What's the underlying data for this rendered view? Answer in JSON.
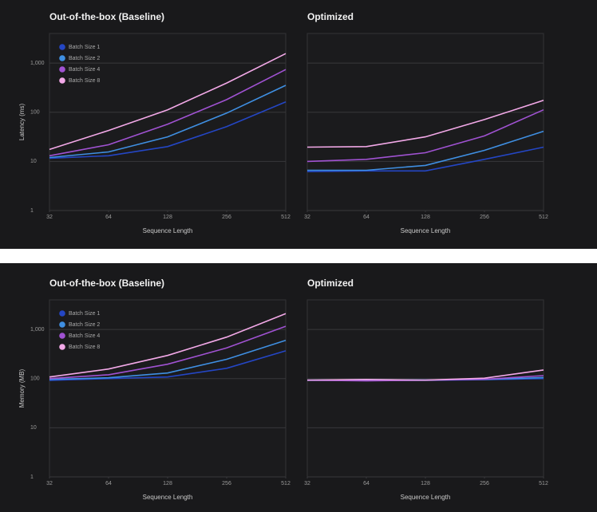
{
  "chart_data": [
    {
      "type": "line",
      "title": "Out-of-the-box (Baseline)",
      "x_label": "Sequence Length",
      "y_label": "Latency (ms)",
      "x": [
        32,
        64,
        128,
        256,
        512
      ],
      "xlim": [
        32,
        512
      ],
      "xticks": [
        32,
        64,
        128,
        256,
        512
      ],
      "xlog": true,
      "ylim": [
        1,
        4000
      ],
      "yticks": [
        1,
        10,
        100,
        {
          "value": 1000,
          "label": "1,000"
        }
      ],
      "ylog": true,
      "grid": true,
      "ytick_labels": true,
      "legend": "upper left",
      "series": [
        {
          "name": "Batch Size 1",
          "color": "#2446c4",
          "values": [
            11.6,
            13,
            20,
            51,
            162
          ]
        },
        {
          "name": "Batch Size 2",
          "color": "#3f8fe2",
          "values": [
            12,
            15.6,
            31.6,
            96,
            353
          ]
        },
        {
          "name": "Batch Size 4",
          "color": "#a052d2",
          "values": [
            13,
            21.8,
            57,
            181,
            740
          ]
        },
        {
          "name": "Batch Size 8",
          "color": "#f3a9e8",
          "values": [
            17.5,
            42.5,
            112,
            393,
            1560
          ]
        }
      ]
    },
    {
      "type": "line",
      "title": "Optimized",
      "x_label": "Sequence Length",
      "x": [
        32,
        64,
        128,
        256,
        512
      ],
      "xlim": [
        32,
        512
      ],
      "xticks": [
        32,
        64,
        128,
        256,
        512
      ],
      "xlog": true,
      "ylim": [
        1,
        4000
      ],
      "yticks": [
        1,
        10,
        100,
        1000
      ],
      "ylog": true,
      "grid": true,
      "ytick_labels": false,
      "legend": false,
      "series": [
        {
          "name": "Batch Size 1",
          "color": "#2446c4",
          "values": [
            6.2,
            6.4,
            6.4,
            11,
            19.5
          ]
        },
        {
          "name": "Batch Size 2",
          "color": "#3f8fe2",
          "values": [
            6.6,
            6.6,
            8.3,
            16.8,
            41
          ]
        },
        {
          "name": "Batch Size 4",
          "color": "#a052d2",
          "values": [
            10,
            11,
            15,
            33,
            112
          ]
        },
        {
          "name": "Batch Size 8",
          "color": "#f3a9e8",
          "values": [
            19.5,
            20,
            31.6,
            71,
            175
          ]
        }
      ]
    },
    {
      "type": "line",
      "title": "Out-of-the-box (Baseline)",
      "x_label": "Sequence Length",
      "y_label": "Memory (MB)",
      "x": [
        32,
        64,
        128,
        256,
        512
      ],
      "xlim": [
        32,
        512
      ],
      "xticks": [
        32,
        64,
        128,
        256,
        512
      ],
      "xlog": true,
      "ylim": [
        1,
        4000
      ],
      "yticks": [
        1,
        10,
        100,
        {
          "value": 1000,
          "label": "1,000"
        }
      ],
      "ylog": true,
      "grid": true,
      "ytick_labels": true,
      "legend": "upper left",
      "series": [
        {
          "name": "Batch Size 1",
          "color": "#2446c4",
          "values": [
            92,
            100,
            108,
            162,
            367
          ]
        },
        {
          "name": "Batch Size 2",
          "color": "#3f8fe2",
          "values": [
            96,
            104,
            130,
            247,
            600
          ]
        },
        {
          "name": "Batch Size 4",
          "color": "#a052d2",
          "values": [
            100,
            120,
            196,
            420,
            1160
          ]
        },
        {
          "name": "Batch Size 8",
          "color": "#f3a9e8",
          "values": [
            108,
            157,
            296,
            700,
            2100
          ]
        }
      ]
    },
    {
      "type": "line",
      "title": "Optimized",
      "x_label": "Sequence Length",
      "x": [
        32,
        64,
        128,
        256,
        512
      ],
      "xlim": [
        32,
        512
      ],
      "xticks": [
        32,
        64,
        128,
        256,
        512
      ],
      "xlog": true,
      "ylim": [
        1,
        4000
      ],
      "yticks": [
        1,
        10,
        100,
        1000
      ],
      "ylog": true,
      "grid": true,
      "ytick_labels": false,
      "legend": false,
      "series": [
        {
          "name": "Batch Size 1",
          "color": "#2446c4",
          "values": [
            92,
            93,
            92,
            95,
            100
          ]
        },
        {
          "name": "Batch Size 2",
          "color": "#3f8fe2",
          "values": [
            93,
            95,
            94,
            96,
            105
          ]
        },
        {
          "name": "Batch Size 4",
          "color": "#a052d2",
          "values": [
            93,
            90,
            93,
            97,
            115
          ]
        },
        {
          "name": "Batch Size 8",
          "color": "#f3a9e8",
          "values": [
            93,
            96,
            93,
            102,
            150
          ]
        }
      ]
    }
  ]
}
